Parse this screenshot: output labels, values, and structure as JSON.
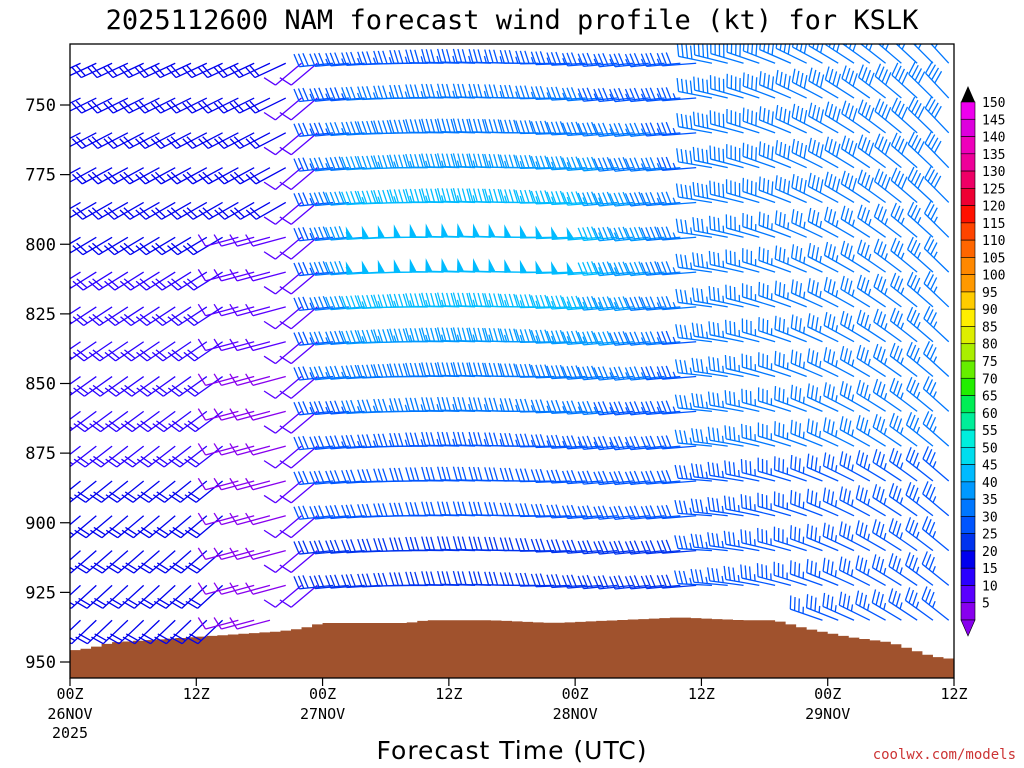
{
  "chart_data": {
    "type": "wind_profile",
    "title": "2025112600 NAM forecast wind profile (kt) for KSLK",
    "xlabel": "Forecast Time (UTC)",
    "ylabel": "",
    "y_axis": {
      "units": "hPa",
      "ylim": [
        955,
        730
      ],
      "ticks": [
        750,
        775,
        800,
        825,
        850,
        875,
        900,
        925,
        950
      ]
    },
    "x_axis": {
      "units": "forecast hour",
      "xlim": [
        0,
        84
      ],
      "ticks": [
        {
          "hour": 0,
          "label": "00Z",
          "date": "26NOV",
          "year": "2025"
        },
        {
          "hour": 12,
          "label": "12Z",
          "date": "",
          "year": ""
        },
        {
          "hour": 24,
          "label": "00Z",
          "date": "27NOV",
          "year": ""
        },
        {
          "hour": 36,
          "label": "12Z",
          "date": "",
          "year": ""
        },
        {
          "hour": 48,
          "label": "00Z",
          "date": "28NOV",
          "year": ""
        },
        {
          "hour": 60,
          "label": "12Z",
          "date": "",
          "year": ""
        },
        {
          "hour": 72,
          "label": "00Z",
          "date": "29NOV",
          "year": ""
        },
        {
          "hour": 84,
          "label": "12Z",
          "date": "",
          "year": ""
        }
      ]
    },
    "colorbar": {
      "units": "kt",
      "levels": [
        5,
        10,
        15,
        20,
        25,
        30,
        35,
        40,
        45,
        50,
        55,
        60,
        65,
        70,
        75,
        80,
        85,
        90,
        95,
        100,
        105,
        110,
        115,
        120,
        125,
        130,
        135,
        140,
        145,
        150
      ],
      "colors": [
        "#8800ee",
        "#5a00ff",
        "#2a00ff",
        "#0000ee",
        "#0033ee",
        "#0055ff",
        "#0077ff",
        "#0099ff",
        "#00bbff",
        "#00ddee",
        "#00eedd",
        "#00ee99",
        "#00ee55",
        "#22ee00",
        "#66ee00",
        "#aaee00",
        "#ddee00",
        "#ffee00",
        "#ffcc00",
        "#ff9900",
        "#ff8800",
        "#ff6600",
        "#ff4400",
        "#ff1100",
        "#ee0033",
        "#ee0066",
        "#ee0099",
        "#ee00bb",
        "#dd00dd",
        "#ee00ee"
      ]
    },
    "terrain_color": "#a0522d",
    "surface_pressure": [
      {
        "hour": 0,
        "hPa": 946
      },
      {
        "hour": 2,
        "hPa": 945
      },
      {
        "hour": 4,
        "hPa": 943
      },
      {
        "hour": 8,
        "hPa": 942
      },
      {
        "hour": 12,
        "hPa": 941
      },
      {
        "hour": 16,
        "hPa": 940
      },
      {
        "hour": 20,
        "hPa": 939
      },
      {
        "hour": 22,
        "hPa": 938
      },
      {
        "hour": 24,
        "hPa": 936
      },
      {
        "hour": 32,
        "hPa": 936
      },
      {
        "hour": 34,
        "hPa": 935
      },
      {
        "hour": 40,
        "hPa": 935
      },
      {
        "hour": 46,
        "hPa": 936
      },
      {
        "hour": 52,
        "hPa": 935
      },
      {
        "hour": 58,
        "hPa": 934
      },
      {
        "hour": 64,
        "hPa": 935
      },
      {
        "hour": 67,
        "hPa": 935
      },
      {
        "hour": 70,
        "hPa": 938
      },
      {
        "hour": 74,
        "hPa": 941
      },
      {
        "hour": 78,
        "hPa": 943
      },
      {
        "hour": 82,
        "hPa": 948
      },
      {
        "hour": 84,
        "hPa": 949
      }
    ],
    "wind_regimes": [
      {
        "hours": [
          0,
          22
        ],
        "low_levels": "southwesterly 20-30 kt",
        "mid_levels": "west-southwesterly 10-25 kt"
      },
      {
        "hours": [
          24,
          36
        ],
        "mid_levels": "westerly 40-50 kt jet near 775-825 hPa"
      },
      {
        "hours": [
          36,
          60
        ],
        "all_levels": "westerly 30-50 kt"
      },
      {
        "hours": [
          60,
          84
        ],
        "all_levels": "northwesterly 25-40 kt"
      }
    ]
  },
  "credit": "coolwx.com/models"
}
